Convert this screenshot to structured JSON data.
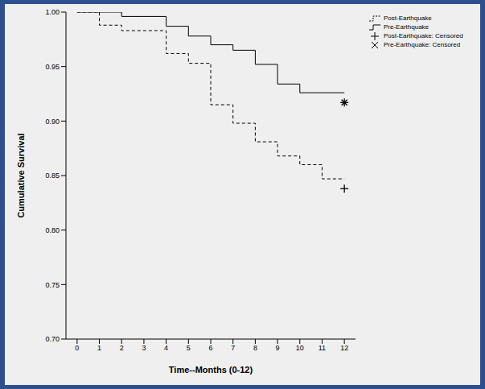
{
  "chart_data": {
    "type": "line",
    "x_label": "Time--Months (0-12)",
    "y_label": "Cumulative Survival",
    "x": [
      0,
      1,
      2,
      3,
      4,
      5,
      6,
      7,
      8,
      9,
      10,
      11,
      12
    ],
    "series": [
      {
        "name": "Post-Earthquake",
        "type": "line",
        "color": "#000000",
        "line_style": "dashed",
        "values": [
          1.0,
          0.988,
          0.983,
          0.983,
          0.962,
          0.953,
          0.915,
          0.898,
          0.881,
          0.868,
          0.86,
          0.847,
          0.847
        ]
      },
      {
        "name": "Pre-Earthquake",
        "type": "line",
        "color": "#000000",
        "line_style": "solid",
        "values": [
          1.0,
          1.0,
          0.996,
          0.996,
          0.987,
          0.978,
          0.97,
          0.965,
          0.952,
          0.934,
          0.926,
          0.926,
          0.926
        ]
      },
      {
        "name": "Post-Earthquake: Censored",
        "type": "scatter",
        "color": "#000000",
        "marker": "plus",
        "values": [
          null,
          null,
          null,
          null,
          null,
          null,
          null,
          null,
          null,
          null,
          null,
          null,
          0.838
        ]
      },
      {
        "name": "Pre-Earthquake: Censored",
        "type": "scatter",
        "color": "#000000",
        "marker": "star",
        "values": [
          null,
          null,
          null,
          null,
          null,
          null,
          null,
          null,
          null,
          null,
          null,
          null,
          0.917
        ]
      }
    ],
    "xlim": [
      -0.5,
      12.5
    ],
    "xticks": [
      0,
      1,
      2,
      3,
      4,
      5,
      6,
      7,
      8,
      9,
      10,
      11,
      12
    ],
    "ylim": [
      0.7,
      1.0
    ],
    "yticks": [
      {
        "value": 0.7,
        "label": "0.70"
      },
      0.75,
      {
        "value": 0.8,
        "label": "0.80"
      },
      0.85,
      {
        "value": 0.9,
        "label": "0.90"
      },
      0.95,
      {
        "value": 1.0,
        "label": "1.00"
      }
    ],
    "grid": false,
    "legend": "upper right"
  }
}
